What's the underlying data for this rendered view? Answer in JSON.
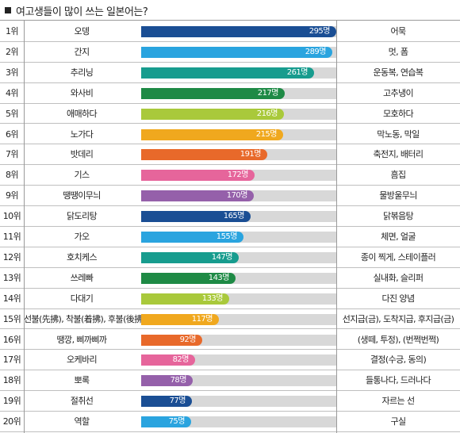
{
  "title": "여고생들이 많이 쓰는 일본어는?",
  "chart_data": {
    "type": "bar",
    "title": "여고생들이 많이 쓰는 일본어는?",
    "unit": "명",
    "xlim": [
      0,
      295
    ],
    "rows": [
      {
        "rank": "1위",
        "term": "오뎅",
        "value": 295,
        "label": "295명",
        "meaning": "어묵",
        "color": "#1a4e94"
      },
      {
        "rank": "2위",
        "term": "간지",
        "value": 289,
        "label": "289명",
        "meaning": "멋, 폼",
        "color": "#2aa4df"
      },
      {
        "rank": "3위",
        "term": "추리닝",
        "value": 261,
        "label": "261명",
        "meaning": "운동복, 연습복",
        "color": "#179c8e"
      },
      {
        "rank": "4위",
        "term": "와사비",
        "value": 217,
        "label": "217명",
        "meaning": "고추냉이",
        "color": "#1e8a45"
      },
      {
        "rank": "5위",
        "term": "애매하다",
        "value": 216,
        "label": "216명",
        "meaning": "모호하다",
        "color": "#a9c93b"
      },
      {
        "rank": "6위",
        "term": "노가다",
        "value": 215,
        "label": "215명",
        "meaning": "막노동, 막일",
        "color": "#f0a81e"
      },
      {
        "rank": "7위",
        "term": "밧데리",
        "value": 191,
        "label": "191명",
        "meaning": "축전지, 배터리",
        "color": "#e8692a"
      },
      {
        "rank": "8위",
        "term": "기스",
        "value": 172,
        "label": "172명",
        "meaning": "흠집",
        "color": "#e6659b"
      },
      {
        "rank": "9위",
        "term": "땡땡이무늬",
        "value": 170,
        "label": "170명",
        "meaning": "물방울무늬",
        "color": "#9560aa"
      },
      {
        "rank": "10위",
        "term": "닭도리탕",
        "value": 165,
        "label": "165명",
        "meaning": "닭볶음탕",
        "color": "#1a4e94"
      },
      {
        "rank": "11위",
        "term": "가오",
        "value": 155,
        "label": "155명",
        "meaning": "체면, 얼굴",
        "color": "#2aa4df"
      },
      {
        "rank": "12위",
        "term": "호치케스",
        "value": 147,
        "label": "147명",
        "meaning": "종이 찍게, 스테이플러",
        "color": "#179c8e"
      },
      {
        "rank": "13위",
        "term": "쓰레빠",
        "value": 143,
        "label": "143명",
        "meaning": "실내화, 슬리퍼",
        "color": "#1e8a45"
      },
      {
        "rank": "14위",
        "term": "다대기",
        "value": 133,
        "label": "133명",
        "meaning": "다진 양념",
        "color": "#a9c93b"
      },
      {
        "rank": "15위",
        "term": "선불(先拂), 착불(着拂), 후불(後拂)",
        "value": 117,
        "label": "117명",
        "meaning": "선지급(금), 도착지급, 후지급(금)",
        "color": "#f0a81e"
      },
      {
        "rank": "16위",
        "term": "땡깡, 삐까삐까",
        "value": 92,
        "label": "92명",
        "meaning": "(생떼, 투정), (번쩍번쩍)",
        "color": "#e8692a"
      },
      {
        "rank": "17위",
        "term": "오케바리",
        "value": 82,
        "label": "82명",
        "meaning": "결정(수긍, 동의)",
        "color": "#e6659b"
      },
      {
        "rank": "18위",
        "term": "뽀록",
        "value": 78,
        "label": "78명",
        "meaning": "들통나다, 드러나다",
        "color": "#9560aa"
      },
      {
        "rank": "19위",
        "term": "절취선",
        "value": 77,
        "label": "77명",
        "meaning": "자르는 선",
        "color": "#1a4e94"
      },
      {
        "rank": "20위",
        "term": "역할",
        "value": 75,
        "label": "75명",
        "meaning": "구실",
        "color": "#2aa4df"
      }
    ]
  }
}
